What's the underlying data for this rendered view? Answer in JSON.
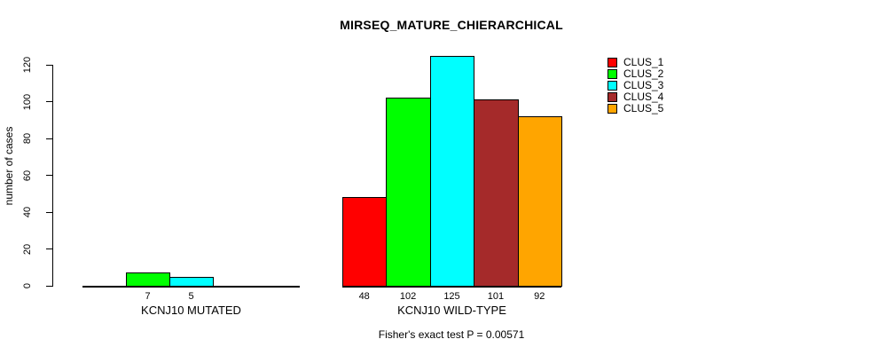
{
  "chart_data": {
    "type": "bar",
    "title": "MIRSEQ_MATURE_CHIERARCHICAL",
    "xlabel": "",
    "ylabel": "number of cases",
    "ylim": [
      0,
      130
    ],
    "yticks": [
      0,
      20,
      40,
      60,
      80,
      100,
      120
    ],
    "grid": false,
    "legend_position": "top-right",
    "categories": [
      "KCNJ10 MUTATED",
      "KCNJ10 WILD-TYPE"
    ],
    "series": [
      {
        "name": "CLUS_1",
        "color": "#FF0000",
        "values": [
          0,
          48
        ]
      },
      {
        "name": "CLUS_2",
        "color": "#00FF00",
        "values": [
          7,
          102
        ]
      },
      {
        "name": "CLUS_3",
        "color": "#00FFFF",
        "values": [
          5,
          125
        ]
      },
      {
        "name": "CLUS_4",
        "color": "#A52A2A",
        "values": [
          0,
          101
        ]
      },
      {
        "name": "CLUS_5",
        "color": "#FFA500",
        "values": [
          0,
          92
        ]
      }
    ],
    "bar_value_labels": {
      "KCNJ10 MUTATED": [
        "",
        "7",
        "5",
        "",
        ""
      ],
      "KCNJ10 WILD-TYPE": [
        "48",
        "102",
        "125",
        "101",
        "92"
      ]
    },
    "footnote": "Fisher's exact test P = 0.00571"
  }
}
